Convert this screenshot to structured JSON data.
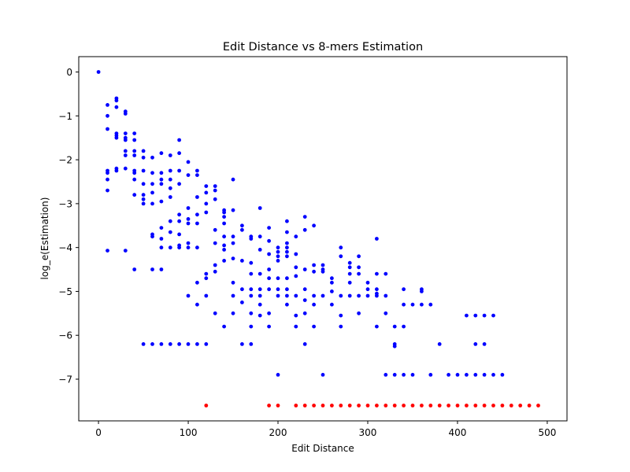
{
  "chart_data": {
    "type": "scatter",
    "title": "Edit Distance vs 8-mers Estimation",
    "xlabel": "Edit Distance",
    "ylabel": "log_e(Estimation)",
    "xlim": [
      -22,
      522
    ],
    "ylim": [
      -7.95,
      0.35
    ],
    "xticks": [
      0,
      100,
      200,
      300,
      400,
      500
    ],
    "yticks": [
      0,
      -1,
      -2,
      -3,
      -4,
      -5,
      -6,
      -7
    ],
    "ytick_labels": [
      "0",
      "−1",
      "−2",
      "−3",
      "−4",
      "−5",
      "−6",
      "−7"
    ],
    "grid": false,
    "legend": "none",
    "series": [
      {
        "color": "#0000ff",
        "points": [
          [
            0,
            0
          ],
          [
            10,
            -0.75
          ],
          [
            10,
            -1.0
          ],
          [
            10,
            -1.3
          ],
          [
            10,
            -2.25
          ],
          [
            10,
            -2.3
          ],
          [
            10,
            -2.45
          ],
          [
            10,
            -2.7
          ],
          [
            10,
            -4.07
          ],
          [
            20,
            -0.6
          ],
          [
            20,
            -0.65
          ],
          [
            20,
            -0.8
          ],
          [
            20,
            -1.4
          ],
          [
            20,
            -1.45
          ],
          [
            20,
            -1.5
          ],
          [
            20,
            -2.2
          ],
          [
            20,
            -2.25
          ],
          [
            30,
            -0.9
          ],
          [
            30,
            -0.95
          ],
          [
            30,
            -1.4
          ],
          [
            30,
            -1.5
          ],
          [
            30,
            -1.55
          ],
          [
            30,
            -1.8
          ],
          [
            30,
            -1.9
          ],
          [
            30,
            -2.2
          ],
          [
            30,
            -4.07
          ],
          [
            40,
            -1.4
          ],
          [
            40,
            -1.55
          ],
          [
            40,
            -1.8
          ],
          [
            40,
            -1.9
          ],
          [
            40,
            -2.25
          ],
          [
            40,
            -2.3
          ],
          [
            40,
            -2.45
          ],
          [
            40,
            -2.8
          ],
          [
            40,
            -4.5
          ],
          [
            50,
            -1.8
          ],
          [
            50,
            -1.95
          ],
          [
            50,
            -2.25
          ],
          [
            50,
            -2.55
          ],
          [
            50,
            -2.8
          ],
          [
            50,
            -2.9
          ],
          [
            50,
            -3.0
          ],
          [
            50,
            -6.2
          ],
          [
            60,
            -1.95
          ],
          [
            60,
            -2.3
          ],
          [
            60,
            -2.55
          ],
          [
            60,
            -2.75
          ],
          [
            60,
            -3.0
          ],
          [
            60,
            -3.7
          ],
          [
            60,
            -3.75
          ],
          [
            60,
            -4.5
          ],
          [
            60,
            -6.2
          ],
          [
            70,
            -1.85
          ],
          [
            70,
            -2.3
          ],
          [
            70,
            -2.45
          ],
          [
            70,
            -2.55
          ],
          [
            70,
            -2.95
          ],
          [
            70,
            -3.55
          ],
          [
            70,
            -3.8
          ],
          [
            70,
            -4.0
          ],
          [
            70,
            -4.5
          ],
          [
            70,
            -6.2
          ],
          [
            80,
            -1.9
          ],
          [
            80,
            -2.25
          ],
          [
            80,
            -2.45
          ],
          [
            80,
            -2.65
          ],
          [
            80,
            -2.85
          ],
          [
            80,
            -3.4
          ],
          [
            80,
            -3.65
          ],
          [
            80,
            -4.0
          ],
          [
            80,
            -6.2
          ],
          [
            90,
            -1.55
          ],
          [
            90,
            -1.85
          ],
          [
            90,
            -2.25
          ],
          [
            90,
            -2.55
          ],
          [
            90,
            -3.25
          ],
          [
            90,
            -3.4
          ],
          [
            90,
            -3.7
          ],
          [
            90,
            -3.95
          ],
          [
            90,
            -4.0
          ],
          [
            90,
            -6.2
          ],
          [
            100,
            -2.05
          ],
          [
            100,
            -2.35
          ],
          [
            100,
            -3.1
          ],
          [
            100,
            -3.35
          ],
          [
            100,
            -3.45
          ],
          [
            100,
            -3.9
          ],
          [
            100,
            -4.0
          ],
          [
            100,
            -5.1
          ],
          [
            100,
            -6.2
          ],
          [
            110,
            -2.25
          ],
          [
            110,
            -2.35
          ],
          [
            110,
            -2.85
          ],
          [
            110,
            -3.25
          ],
          [
            110,
            -3.45
          ],
          [
            110,
            -4.0
          ],
          [
            110,
            -4.8
          ],
          [
            110,
            -5.3
          ],
          [
            110,
            -6.2
          ],
          [
            120,
            -2.6
          ],
          [
            120,
            -2.75
          ],
          [
            120,
            -3.0
          ],
          [
            120,
            -3.2
          ],
          [
            120,
            -4.6
          ],
          [
            120,
            -4.7
          ],
          [
            120,
            -5.1
          ],
          [
            120,
            -6.2
          ],
          [
            130,
            -2.6
          ],
          [
            130,
            -2.7
          ],
          [
            130,
            -2.9
          ],
          [
            130,
            -3.6
          ],
          [
            130,
            -3.9
          ],
          [
            130,
            -4.4
          ],
          [
            130,
            -4.55
          ],
          [
            130,
            -5.5
          ],
          [
            140,
            -3.15
          ],
          [
            140,
            -3.2
          ],
          [
            140,
            -3.3
          ],
          [
            140,
            -3.45
          ],
          [
            140,
            -3.75
          ],
          [
            140,
            -3.95
          ],
          [
            140,
            -4.05
          ],
          [
            140,
            -4.3
          ],
          [
            140,
            -5.8
          ],
          [
            150,
            -2.45
          ],
          [
            150,
            -3.15
          ],
          [
            150,
            -3.75
          ],
          [
            150,
            -3.9
          ],
          [
            150,
            -4.25
          ],
          [
            150,
            -4.8
          ],
          [
            150,
            -5.1
          ],
          [
            150,
            -5.5
          ],
          [
            160,
            -3.5
          ],
          [
            160,
            -3.6
          ],
          [
            160,
            -4.3
          ],
          [
            160,
            -4.95
          ],
          [
            160,
            -5.25
          ],
          [
            160,
            -6.2
          ],
          [
            170,
            -3.75
          ],
          [
            170,
            -3.8
          ],
          [
            170,
            -4.35
          ],
          [
            170,
            -4.6
          ],
          [
            170,
            -4.95
          ],
          [
            170,
            -5.1
          ],
          [
            170,
            -5.5
          ],
          [
            170,
            -5.8
          ],
          [
            170,
            -6.2
          ],
          [
            180,
            -3.1
          ],
          [
            180,
            -3.75
          ],
          [
            180,
            -4.05
          ],
          [
            180,
            -4.6
          ],
          [
            180,
            -4.95
          ],
          [
            180,
            -5.1
          ],
          [
            180,
            -5.3
          ],
          [
            180,
            -5.55
          ],
          [
            190,
            -3.55
          ],
          [
            190,
            -3.85
          ],
          [
            190,
            -4.15
          ],
          [
            190,
            -4.5
          ],
          [
            190,
            -4.7
          ],
          [
            190,
            -4.95
          ],
          [
            190,
            -5.5
          ],
          [
            190,
            -5.8
          ],
          [
            200,
            -4.0
          ],
          [
            200,
            -4.1
          ],
          [
            200,
            -4.2
          ],
          [
            200,
            -4.3
          ],
          [
            200,
            -4.7
          ],
          [
            200,
            -4.95
          ],
          [
            200,
            -5.1
          ],
          [
            200,
            -6.9
          ],
          [
            210,
            -3.4
          ],
          [
            210,
            -3.65
          ],
          [
            210,
            -3.9
          ],
          [
            210,
            -4.0
          ],
          [
            210,
            -4.1
          ],
          [
            210,
            -4.2
          ],
          [
            210,
            -4.7
          ],
          [
            210,
            -4.95
          ],
          [
            210,
            -5.1
          ],
          [
            210,
            -5.3
          ],
          [
            220,
            -3.75
          ],
          [
            220,
            -4.15
          ],
          [
            220,
            -4.45
          ],
          [
            220,
            -4.65
          ],
          [
            220,
            -5.1
          ],
          [
            220,
            -5.55
          ],
          [
            220,
            -5.8
          ],
          [
            230,
            -3.3
          ],
          [
            230,
            -3.6
          ],
          [
            230,
            -4.5
          ],
          [
            230,
            -4.95
          ],
          [
            230,
            -5.2
          ],
          [
            230,
            -5.5
          ],
          [
            230,
            -6.2
          ],
          [
            240,
            -3.5
          ],
          [
            240,
            -4.4
          ],
          [
            240,
            -4.55
          ],
          [
            240,
            -5.1
          ],
          [
            240,
            -5.3
          ],
          [
            240,
            -5.8
          ],
          [
            250,
            -4.4
          ],
          [
            250,
            -4.5
          ],
          [
            250,
            -4.55
          ],
          [
            250,
            -5.1
          ],
          [
            250,
            -6.9
          ],
          [
            260,
            -4.7
          ],
          [
            260,
            -4.8
          ],
          [
            260,
            -5.0
          ],
          [
            260,
            -5.3
          ],
          [
            270,
            -4.0
          ],
          [
            270,
            -4.2
          ],
          [
            270,
            -5.1
          ],
          [
            270,
            -5.55
          ],
          [
            270,
            -5.8
          ],
          [
            280,
            -4.35
          ],
          [
            280,
            -4.45
          ],
          [
            280,
            -4.6
          ],
          [
            280,
            -4.8
          ],
          [
            280,
            -5.1
          ],
          [
            290,
            -4.2
          ],
          [
            290,
            -4.45
          ],
          [
            290,
            -4.6
          ],
          [
            290,
            -5.1
          ],
          [
            290,
            -5.5
          ],
          [
            300,
            -4.8
          ],
          [
            300,
            -4.95
          ],
          [
            300,
            -5.1
          ],
          [
            310,
            -3.8
          ],
          [
            310,
            -4.6
          ],
          [
            310,
            -4.95
          ],
          [
            310,
            -5.05
          ],
          [
            310,
            -5.1
          ],
          [
            310,
            -5.8
          ],
          [
            320,
            -4.6
          ],
          [
            320,
            -5.1
          ],
          [
            320,
            -5.5
          ],
          [
            320,
            -6.9
          ],
          [
            330,
            -5.8
          ],
          [
            330,
            -6.2
          ],
          [
            330,
            -6.25
          ],
          [
            330,
            -6.9
          ],
          [
            340,
            -4.95
          ],
          [
            340,
            -5.3
          ],
          [
            340,
            -5.8
          ],
          [
            340,
            -6.9
          ],
          [
            350,
            -5.3
          ],
          [
            350,
            -6.9
          ],
          [
            360,
            -4.95
          ],
          [
            360,
            -5.0
          ],
          [
            360,
            -5.3
          ],
          [
            370,
            -5.3
          ],
          [
            370,
            -6.9
          ],
          [
            380,
            -6.2
          ],
          [
            390,
            -6.9
          ],
          [
            400,
            -6.9
          ],
          [
            410,
            -5.55
          ],
          [
            410,
            -6.9
          ],
          [
            420,
            -5.55
          ],
          [
            420,
            -6.2
          ],
          [
            420,
            -6.9
          ],
          [
            430,
            -5.55
          ],
          [
            430,
            -6.2
          ],
          [
            430,
            -6.9
          ],
          [
            440,
            -5.55
          ],
          [
            440,
            -6.9
          ],
          [
            450,
            -6.9
          ]
        ]
      },
      {
        "color": "#ff0000",
        "points": [
          [
            120,
            -7.6
          ],
          [
            190,
            -7.6
          ],
          [
            200,
            -7.6
          ],
          [
            220,
            -7.6
          ],
          [
            230,
            -7.6
          ],
          [
            240,
            -7.6
          ],
          [
            250,
            -7.6
          ],
          [
            260,
            -7.6
          ],
          [
            270,
            -7.6
          ],
          [
            280,
            -7.6
          ],
          [
            290,
            -7.6
          ],
          [
            300,
            -7.6
          ],
          [
            310,
            -7.6
          ],
          [
            320,
            -7.6
          ],
          [
            330,
            -7.6
          ],
          [
            340,
            -7.6
          ],
          [
            350,
            -7.6
          ],
          [
            360,
            -7.6
          ],
          [
            370,
            -7.6
          ],
          [
            380,
            -7.6
          ],
          [
            390,
            -7.6
          ],
          [
            400,
            -7.6
          ],
          [
            410,
            -7.6
          ],
          [
            420,
            -7.6
          ],
          [
            430,
            -7.6
          ],
          [
            440,
            -7.6
          ],
          [
            450,
            -7.6
          ],
          [
            460,
            -7.6
          ],
          [
            470,
            -7.6
          ],
          [
            480,
            -7.6
          ],
          [
            490,
            -7.6
          ]
        ]
      }
    ]
  }
}
